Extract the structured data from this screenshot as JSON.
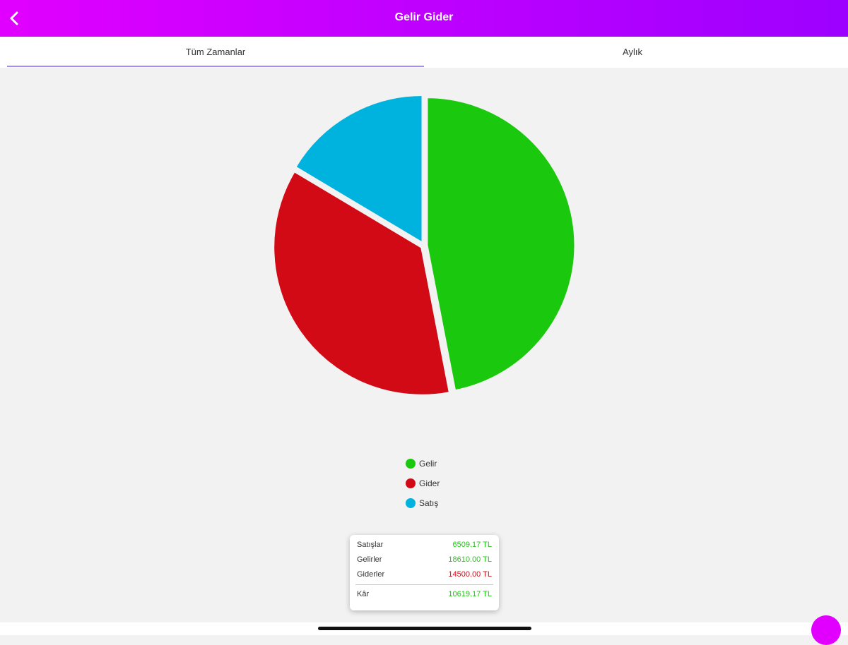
{
  "header": {
    "title": "Gelir Gider"
  },
  "tabs": [
    "Tüm Zamanlar",
    "Aylık"
  ],
  "chart_data": {
    "type": "pie",
    "categories": [
      "Gelir",
      "Gider",
      "Satış"
    ],
    "values": [
      18610.0,
      14500.0,
      6509.17
    ],
    "colors": [
      "#1ac90e",
      "#d20a16",
      "#00b2de"
    ]
  },
  "summary": {
    "rows": [
      [
        "Satışlar",
        "6509.17 TL"
      ],
      [
        "Gelirler",
        "18610.00 TL"
      ],
      [
        "Giderler",
        "14500.00 TL"
      ]
    ],
    "total": [
      "Kâr",
      "10619.17 TL"
    ]
  }
}
